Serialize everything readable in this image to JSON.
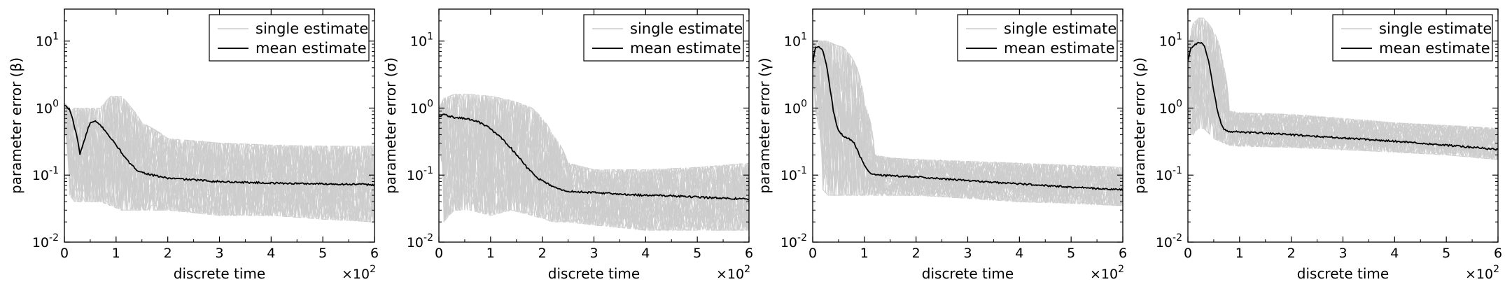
{
  "chart_data": [
    {
      "type": "line",
      "xlabel": "discrete time",
      "ylabel": "parameter error (β)",
      "x_multiplier_label": "×10",
      "x_multiplier_exp": "2",
      "xlim": [
        0,
        6
      ],
      "ylim": [
        0.01,
        30
      ],
      "yscale": "log",
      "xticks": [
        "0",
        "1",
        "2",
        "3",
        "4",
        "5",
        "6"
      ],
      "yticks": [
        {
          "base": "10",
          "exp": "-2"
        },
        {
          "base": "10",
          "exp": "-1"
        },
        {
          "base": "10",
          "exp": "0"
        },
        {
          "base": "10",
          "exp": "1"
        }
      ],
      "legend": {
        "position": "top-right",
        "entries": [
          "single estimate",
          "mean estimate"
        ]
      },
      "series": [
        {
          "name": "mean estimate",
          "color": "#000000",
          "x": [
            0,
            0.1,
            0.2,
            0.3,
            0.4,
            0.5,
            0.6,
            0.7,
            0.8,
            0.9,
            1.0,
            1.1,
            1.2,
            1.3,
            1.4,
            1.5,
            1.7,
            2.0,
            2.5,
            3.0,
            3.5,
            4.0,
            4.5,
            5.0,
            5.5,
            6.0
          ],
          "y": [
            1.1,
            0.95,
            0.5,
            0.2,
            0.35,
            0.6,
            0.63,
            0.55,
            0.45,
            0.35,
            0.28,
            0.22,
            0.17,
            0.14,
            0.12,
            0.11,
            0.1,
            0.09,
            0.085,
            0.08,
            0.078,
            0.076,
            0.075,
            0.074,
            0.073,
            0.072
          ]
        },
        {
          "name": "single estimate",
          "color": "#cccccc",
          "band_x": [
            0,
            0.1,
            0.2,
            0.3,
            0.5,
            0.7,
            0.9,
            1.1,
            1.3,
            1.5,
            2.0,
            3.0,
            4.0,
            5.0,
            6.0
          ],
          "band_low": [
            0.5,
            0.05,
            0.04,
            0.04,
            0.04,
            0.04,
            0.035,
            0.03,
            0.03,
            0.03,
            0.03,
            0.025,
            0.025,
            0.022,
            0.02
          ],
          "band_high": [
            1.2,
            1.0,
            1.0,
            1.0,
            1.0,
            1.0,
            1.5,
            1.5,
            1.0,
            0.6,
            0.35,
            0.3,
            0.28,
            0.27,
            0.27
          ]
        }
      ]
    },
    {
      "type": "line",
      "xlabel": "discrete time",
      "ylabel": "parameter error (σ)",
      "x_multiplier_label": "×10",
      "x_multiplier_exp": "2",
      "xlim": [
        0,
        6
      ],
      "ylim": [
        0.01,
        30
      ],
      "yscale": "log",
      "xticks": [
        "0",
        "1",
        "2",
        "3",
        "4",
        "5",
        "6"
      ],
      "yticks": [
        {
          "base": "10",
          "exp": "-2"
        },
        {
          "base": "10",
          "exp": "-1"
        },
        {
          "base": "10",
          "exp": "0"
        },
        {
          "base": "10",
          "exp": "1"
        }
      ],
      "legend": {
        "position": "top-right",
        "entries": [
          "single estimate",
          "mean estimate"
        ]
      },
      "series": [
        {
          "name": "mean estimate",
          "color": "#000000",
          "x": [
            0,
            0.1,
            0.3,
            0.5,
            0.7,
            0.9,
            1.1,
            1.3,
            1.5,
            1.7,
            1.9,
            2.1,
            2.3,
            2.5,
            3.0,
            3.5,
            4.0,
            4.5,
            5.0,
            5.5,
            6.0
          ],
          "y": [
            0.75,
            0.8,
            0.72,
            0.7,
            0.65,
            0.55,
            0.42,
            0.3,
            0.2,
            0.13,
            0.09,
            0.075,
            0.062,
            0.057,
            0.055,
            0.052,
            0.05,
            0.049,
            0.047,
            0.045,
            0.044
          ]
        },
        {
          "name": "single estimate",
          "color": "#cccccc",
          "band_x": [
            0,
            0.1,
            0.3,
            0.6,
            1.0,
            1.4,
            1.8,
            2.2,
            2.5,
            3.0,
            4.0,
            5.0,
            6.0
          ],
          "band_low": [
            0.3,
            0.02,
            0.03,
            0.03,
            0.025,
            0.03,
            0.025,
            0.02,
            0.02,
            0.018,
            0.015,
            0.015,
            0.015
          ],
          "band_high": [
            1.0,
            1.4,
            1.6,
            1.6,
            1.5,
            1.3,
            1.0,
            0.4,
            0.15,
            0.12,
            0.12,
            0.13,
            0.15
          ]
        }
      ]
    },
    {
      "type": "line",
      "xlabel": "discrete time",
      "ylabel": "parameter error (γ)",
      "x_multiplier_label": "×10",
      "x_multiplier_exp": "2",
      "xlim": [
        0,
        6
      ],
      "ylim": [
        0.01,
        30
      ],
      "yscale": "log",
      "xticks": [
        "0",
        "1",
        "2",
        "3",
        "4",
        "5",
        "6"
      ],
      "yticks": [
        {
          "base": "10",
          "exp": "-2"
        },
        {
          "base": "10",
          "exp": "-1"
        },
        {
          "base": "10",
          "exp": "0"
        },
        {
          "base": "10",
          "exp": "1"
        }
      ],
      "legend": {
        "position": "top-right",
        "entries": [
          "single estimate",
          "mean estimate"
        ]
      },
      "series": [
        {
          "name": "mean estimate",
          "color": "#000000",
          "x": [
            0,
            0.05,
            0.15,
            0.2,
            0.25,
            0.3,
            0.35,
            0.4,
            0.45,
            0.5,
            0.6,
            0.7,
            0.8,
            0.9,
            1.0,
            1.1,
            1.2,
            1.5,
            2.0,
            2.5,
            3.0,
            3.5,
            4.0,
            4.5,
            5.0,
            5.5,
            6.0
          ],
          "y": [
            4.5,
            8.0,
            8.0,
            7.0,
            5.0,
            3.0,
            1.6,
            0.9,
            0.6,
            0.45,
            0.38,
            0.35,
            0.3,
            0.2,
            0.14,
            0.11,
            0.1,
            0.098,
            0.094,
            0.088,
            0.083,
            0.078,
            0.074,
            0.07,
            0.066,
            0.063,
            0.06
          ]
        },
        {
          "name": "single estimate",
          "color": "#cccccc",
          "band_x": [
            0,
            0.05,
            0.2,
            0.3,
            0.4,
            0.6,
            0.8,
            1.0,
            1.2,
            1.5,
            2.0,
            3.0,
            4.0,
            5.0,
            6.0
          ],
          "band_low": [
            3.0,
            0.9,
            0.06,
            0.05,
            0.05,
            0.05,
            0.05,
            0.05,
            0.05,
            0.05,
            0.05,
            0.045,
            0.04,
            0.038,
            0.035
          ],
          "band_high": [
            10.0,
            10.0,
            10.0,
            10.0,
            9.0,
            8.0,
            5.0,
            1.2,
            0.2,
            0.18,
            0.17,
            0.16,
            0.15,
            0.14,
            0.13
          ]
        }
      ]
    },
    {
      "type": "line",
      "xlabel": "discrete time",
      "ylabel": "parameter error (ρ)",
      "x_multiplier_label": "×10",
      "x_multiplier_exp": "2",
      "xlim": [
        0,
        6
      ],
      "ylim": [
        0.01,
        30
      ],
      "yscale": "log",
      "xticks": [
        "0",
        "1",
        "2",
        "3",
        "4",
        "5",
        "6"
      ],
      "yticks": [
        {
          "base": "10",
          "exp": "-2"
        },
        {
          "base": "10",
          "exp": "-1"
        },
        {
          "base": "10",
          "exp": "0"
        },
        {
          "base": "10",
          "exp": "1"
        }
      ],
      "legend": {
        "position": "top-right",
        "entries": [
          "single estimate",
          "mean estimate"
        ]
      },
      "series": [
        {
          "name": "mean estimate",
          "color": "#000000",
          "x": [
            0,
            0.05,
            0.1,
            0.2,
            0.3,
            0.35,
            0.4,
            0.45,
            0.5,
            0.55,
            0.6,
            0.65,
            0.7,
            0.75,
            0.8,
            1.0,
            1.5,
            2.0,
            2.5,
            3.0,
            3.5,
            4.0,
            4.5,
            5.0,
            5.5,
            6.0
          ],
          "y": [
            5.0,
            7.5,
            8.5,
            9.5,
            9.0,
            7.0,
            5.0,
            3.0,
            1.8,
            1.1,
            0.75,
            0.55,
            0.48,
            0.46,
            0.45,
            0.44,
            0.42,
            0.4,
            0.38,
            0.36,
            0.34,
            0.32,
            0.3,
            0.28,
            0.26,
            0.24
          ]
        },
        {
          "name": "single estimate",
          "color": "#cccccc",
          "band_x": [
            0,
            0.05,
            0.1,
            0.2,
            0.3,
            0.5,
            0.7,
            0.8,
            1.0,
            2.0,
            3.0,
            4.0,
            5.0,
            6.0
          ],
          "band_low": [
            1.0,
            0.4,
            0.4,
            0.5,
            0.5,
            0.35,
            0.3,
            0.28,
            0.27,
            0.26,
            0.24,
            0.22,
            0.2,
            0.17
          ],
          "band_high": [
            6.0,
            12.0,
            18.0,
            22.0,
            22.0,
            14.0,
            4.0,
            0.9,
            0.85,
            0.8,
            0.7,
            0.6,
            0.55,
            0.5
          ]
        }
      ]
    }
  ]
}
